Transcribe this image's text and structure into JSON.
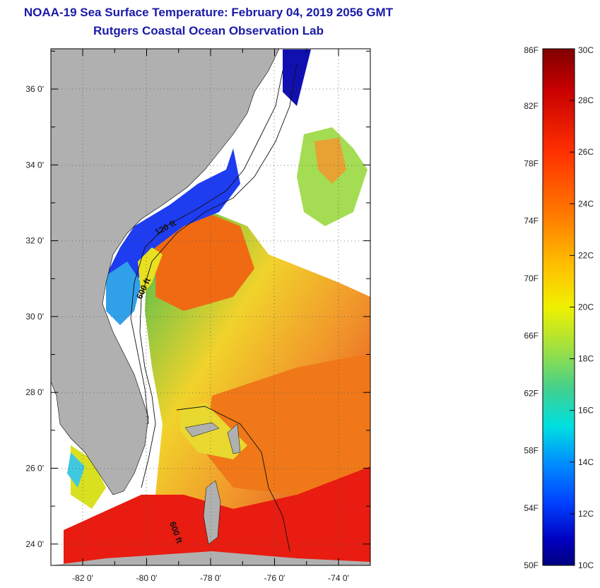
{
  "title": {
    "line1": "NOAA-19 Sea Surface Temperature:  February 04, 2019 2056 GMT",
    "line2": "Rutgers Coastal Ocean Observation Lab"
  },
  "map": {
    "lat_labels": [
      "36 0'",
      "34 0'",
      "32 0'",
      "30 0'",
      "28 0'",
      "26 0'",
      "24 0'"
    ],
    "lon_labels": [
      "-82 0'",
      "-80 0'",
      "-78 0'",
      "-76 0'",
      "-74 0'"
    ],
    "contours": {
      "label_120": "120 ft",
      "label_600_north": "600 ft",
      "label_600_south": "600 ft"
    }
  },
  "colorbar": {
    "fahrenheit": [
      "86F",
      "82F",
      "78F",
      "74F",
      "70F",
      "66F",
      "62F",
      "58F",
      "54F",
      "50F"
    ],
    "celsius": [
      "30C",
      "28C",
      "26C",
      "24C",
      "22C",
      "20C",
      "18C",
      "16C",
      "14C",
      "12C",
      "10C"
    ]
  },
  "colors": {
    "land": "#b0b0b0",
    "title": "#1a1aa8",
    "cloud": "#ffffff"
  }
}
